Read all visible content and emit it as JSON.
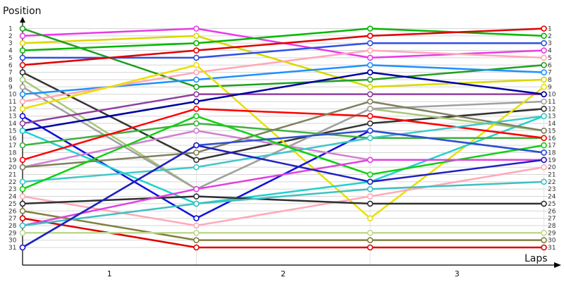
{
  "chart_data": {
    "type": "line",
    "ylabel": "Position",
    "xlabel": "Laps",
    "x_categories": [
      "1",
      "2",
      "3"
    ],
    "x": [
      0,
      1,
      2,
      3
    ],
    "ylim": [
      1,
      31
    ],
    "y_inverted": true,
    "grid": "horizontal",
    "legend": "none",
    "series": [
      {
        "color": "#E83AE8",
        "values": [
          2,
          1,
          5,
          4
        ]
      },
      {
        "color": "#D8D800",
        "values": [
          3,
          2,
          9,
          8
        ]
      },
      {
        "color": "#1F9F1F",
        "values": [
          1,
          9,
          8,
          6
        ]
      },
      {
        "color": "#00B800",
        "values": [
          4,
          3,
          1,
          2
        ]
      },
      {
        "color": "#3050E0",
        "values": [
          5,
          5,
          3,
          3
        ]
      },
      {
        "color": "#E00000",
        "values": [
          6,
          4,
          2,
          1
        ]
      },
      {
        "color": "#333333",
        "values": [
          7,
          19,
          14,
          12
        ]
      },
      {
        "color": "#A8C878",
        "values": [
          8,
          23,
          12,
          15
        ]
      },
      {
        "color": "#A0A0A0",
        "values": [
          9,
          23,
          12,
          11
        ]
      },
      {
        "color": "#1E90FF",
        "values": [
          10,
          8,
          6,
          7
        ]
      },
      {
        "color": "#FFA8B8",
        "values": [
          11,
          7,
          4,
          5
        ]
      },
      {
        "color": "#E8E000",
        "values": [
          12,
          6,
          27,
          9
        ]
      },
      {
        "color": "#1010E0",
        "values": [
          13,
          27,
          15,
          18
        ]
      },
      {
        "color": "#9040A0",
        "values": [
          14,
          10,
          10,
          10
        ]
      },
      {
        "color": "#0000A0",
        "values": [
          15,
          11,
          7,
          10
        ]
      },
      {
        "color": "#20D0D0",
        "values": [
          15,
          25,
          22,
          13
        ]
      },
      {
        "color": "#40B040",
        "values": [
          17,
          14,
          16,
          16
        ]
      },
      {
        "color": "#FF0000",
        "values": [
          19,
          12,
          13,
          16
        ]
      },
      {
        "color": "#D080D0",
        "values": [
          20,
          15,
          19,
          19
        ]
      },
      {
        "color": "#808060",
        "values": [
          20,
          18,
          11,
          15
        ]
      },
      {
        "color": "#40C8C8",
        "values": [
          22,
          20,
          16,
          13
        ]
      },
      {
        "color": "#10D010",
        "values": [
          23,
          13,
          21,
          17
        ]
      },
      {
        "color": "#FFA8B8",
        "values": [
          24,
          28,
          24,
          20
        ]
      },
      {
        "color": "#303030",
        "values": [
          25,
          24,
          25,
          25
        ]
      },
      {
        "color": "#808040",
        "values": [
          26,
          30,
          30,
          30
        ]
      },
      {
        "color": "#E00000",
        "values": [
          27,
          31,
          31,
          31
        ]
      },
      {
        "color": "#E040E0",
        "values": [
          28,
          23,
          19,
          19
        ]
      },
      {
        "color": "#40C0C0",
        "values": [
          28,
          25,
          23,
          22
        ]
      },
      {
        "color": "#C0D890",
        "values": [
          29,
          29,
          29,
          29
        ]
      },
      {
        "color": "#3050D0",
        "values": [
          31,
          17,
          15,
          18
        ]
      },
      {
        "color": "#2020C0",
        "values": [
          31,
          17,
          22,
          19
        ]
      }
    ]
  }
}
